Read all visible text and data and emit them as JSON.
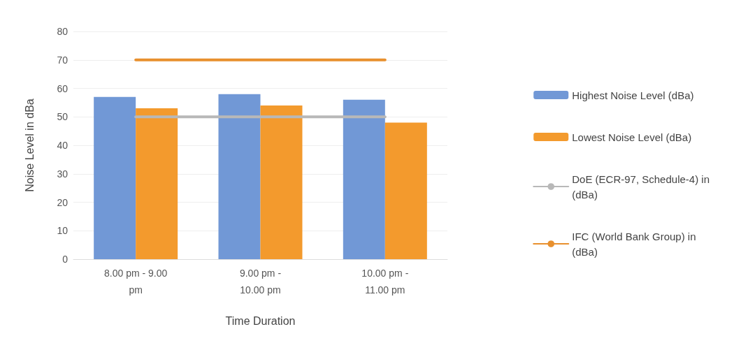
{
  "chart_data": {
    "type": "bar",
    "xlabel": "Time Duration",
    "ylabel": "Noise Level in dBa",
    "categories": [
      "8.00 pm - 9.00 pm",
      "9.00 pm - 10.00 pm",
      "10.00 pm - 11.00 pm"
    ],
    "series": [
      {
        "name": "Highest Noise Level (dBa)",
        "color": "#7198d6",
        "values": [
          57,
          58,
          56
        ]
      },
      {
        "name": "Lowest Noise Level (dBa)",
        "color": "#f39a2d",
        "values": [
          53,
          54,
          48
        ]
      },
      {
        "name": "DoE (ECR-97, Schedule-4) in (dBa)",
        "type": "line",
        "color": "#b8b8b8",
        "values": [
          50,
          50,
          50
        ],
        "marker": "none"
      },
      {
        "name": "IFC (World Bank Group) in (dBa)",
        "type": "line",
        "color": "#e8902e",
        "values": [
          70,
          70,
          70
        ],
        "marker": "none"
      }
    ],
    "ylim": [
      0,
      80
    ],
    "yticks": [
      0,
      10,
      20,
      30,
      40,
      50,
      60,
      70,
      80
    ],
    "grid": "y",
    "legend": "right"
  }
}
